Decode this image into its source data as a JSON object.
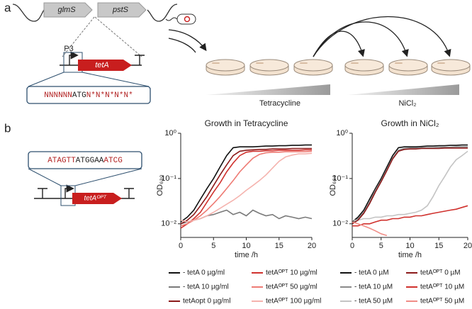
{
  "labels": {
    "panel_a": "a",
    "panel_b": "b"
  },
  "diagram_a": {
    "gene1": "glmS",
    "gene2": "pstS",
    "promoter": "P3",
    "gene": "tetA",
    "sequence": [
      "NNNNNN",
      "ATG",
      "N*N*N*N*N*"
    ],
    "gradient1": "Tetracycline",
    "gradient2": "NiCl₂"
  },
  "diagram_b": {
    "sequence": [
      "ATAGTT",
      "ATGGAA",
      "ATCG"
    ],
    "gene": "tetAᴼᴾᵀ"
  },
  "chart_data": [
    {
      "type": "line",
      "title": "Growth in Tetracycline",
      "x_label": "time /h",
      "y_label": "OD₆₃₀",
      "log_y": true,
      "xlim": [
        0,
        20
      ],
      "ylim": [
        0.005,
        1
      ],
      "xticks": [
        0,
        5,
        10,
        15,
        20
      ],
      "yticks": [
        {
          "value": 0.01,
          "label": "10⁻²"
        },
        {
          "value": 0.1,
          "label": "10⁻¹"
        },
        {
          "value": 1,
          "label": "10⁰"
        }
      ],
      "x": [
        0,
        1,
        2,
        3,
        4,
        5,
        6,
        7,
        8,
        9,
        10,
        11,
        12,
        13,
        14,
        15,
        16,
        17,
        18,
        19,
        20
      ],
      "series": [
        {
          "name": "- tetA 0 µg/ml",
          "color": "#111111",
          "values": [
            0.011,
            0.014,
            0.02,
            0.035,
            0.06,
            0.1,
            0.18,
            0.32,
            0.48,
            0.5,
            0.5,
            0.5,
            0.51,
            0.52,
            0.52,
            0.53,
            0.53,
            0.54,
            0.54,
            0.55,
            0.55
          ]
        },
        {
          "name": "- tetA 10 µg/ml",
          "color": "#7a7a7a",
          "values": [
            0.01,
            0.011,
            0.012,
            0.013,
            0.015,
            0.016,
            0.018,
            0.02,
            0.016,
            0.018,
            0.015,
            0.02,
            0.017,
            0.015,
            0.016,
            0.013,
            0.015,
            0.014,
            0.013,
            0.014,
            0.013
          ]
        },
        {
          "name": "tetAopt 0 µg/ml",
          "color": "#8b1a1a",
          "values": [
            0.01,
            0.012,
            0.016,
            0.025,
            0.04,
            0.07,
            0.12,
            0.2,
            0.32,
            0.4,
            0.42,
            0.43,
            0.44,
            0.44,
            0.45,
            0.45,
            0.45,
            0.46,
            0.46,
            0.46,
            0.46
          ]
        },
        {
          "name": "tetAᴼᴾᵀ 10 µg/ml",
          "color": "#d0312d",
          "values": [
            0.008,
            0.01,
            0.013,
            0.018,
            0.03,
            0.05,
            0.08,
            0.14,
            0.22,
            0.32,
            0.38,
            0.4,
            0.4,
            0.41,
            0.41,
            0.42,
            0.42,
            0.42,
            0.42,
            0.43,
            0.43
          ]
        },
        {
          "name": "tetAᴼᴾᵀ 50 µg/ml",
          "color": "#ee7b74",
          "values": [
            0.009,
            0.01,
            0.012,
            0.015,
            0.02,
            0.028,
            0.04,
            0.06,
            0.09,
            0.14,
            0.2,
            0.28,
            0.34,
            0.37,
            0.38,
            0.38,
            0.39,
            0.39,
            0.39,
            0.39,
            0.4
          ]
        },
        {
          "name": "tetAᴼᴾᵀ 100 µg/ml",
          "color": "#f5b3ae",
          "values": [
            0.012,
            0.011,
            0.012,
            0.013,
            0.015,
            0.018,
            0.022,
            0.027,
            0.033,
            0.042,
            0.055,
            0.07,
            0.09,
            0.12,
            0.17,
            0.24,
            0.3,
            0.33,
            0.35,
            0.35,
            0.36
          ]
        }
      ]
    },
    {
      "type": "line",
      "title": "Growth in NiCl₂",
      "x_label": "time /h",
      "y_label": "OD₆₃₀",
      "log_y": true,
      "xlim": [
        0,
        20
      ],
      "ylim": [
        0.005,
        1
      ],
      "xticks": [
        0,
        5,
        10,
        15,
        20
      ],
      "yticks": [
        {
          "value": 0.01,
          "label": "10⁻²"
        },
        {
          "value": 0.1,
          "label": "10⁻¹"
        },
        {
          "value": 1,
          "label": "10⁰"
        }
      ],
      "x": [
        0,
        1,
        2,
        3,
        4,
        5,
        6,
        7,
        8,
        9,
        10,
        11,
        12,
        13,
        14,
        15,
        16,
        17,
        18,
        19,
        20
      ],
      "series": [
        {
          "name": "- tetA 0 µM",
          "color": "#111111",
          "values": [
            0.011,
            0.014,
            0.02,
            0.035,
            0.06,
            0.1,
            0.18,
            0.32,
            0.48,
            0.5,
            0.5,
            0.5,
            0.51,
            0.52,
            0.52,
            0.53,
            0.53,
            0.54,
            0.54,
            0.55,
            0.55
          ]
        },
        {
          "name": "- tetA 10 µM",
          "color": "#8a8a8a",
          "values": [
            0.01,
            0.013,
            0.018,
            0.03,
            0.055,
            0.09,
            0.16,
            0.28,
            0.42,
            0.46,
            0.47,
            0.47,
            0.48,
            0.48,
            0.48,
            0.49,
            0.49,
            0.49,
            0.5,
            0.5,
            0.5
          ]
        },
        {
          "name": "- tetA 50 µM",
          "color": "#c4c4c4",
          "values": [
            0.012,
            0.012,
            0.013,
            0.013,
            0.014,
            0.014,
            0.015,
            0.015,
            0.016,
            0.016,
            0.017,
            0.018,
            0.02,
            0.025,
            0.04,
            0.07,
            0.11,
            0.18,
            0.26,
            0.32,
            0.4
          ]
        },
        {
          "name": "tetAᴼᴾᵀ 0 µM",
          "color": "#8b1a1a",
          "values": [
            0.01,
            0.012,
            0.017,
            0.028,
            0.05,
            0.085,
            0.15,
            0.27,
            0.4,
            0.44,
            0.45,
            0.45,
            0.46,
            0.46,
            0.46,
            0.46,
            0.47,
            0.47,
            0.47,
            0.47,
            0.47
          ]
        },
        {
          "name": "tetAᴼᴾᵀ 10 µM",
          "color": "#d0312d",
          "values": [
            0.009,
            0.009,
            0.01,
            0.01,
            0.011,
            0.012,
            0.012,
            0.013,
            0.013,
            0.014,
            0.014,
            0.015,
            0.015,
            0.016,
            0.017,
            0.018,
            0.019,
            0.02,
            0.021,
            0.023,
            0.025
          ]
        },
        {
          "name": "tetAᴼᴾᵀ 50 µM",
          "color": "#f08c86",
          "values": [
            0.011,
            0.01,
            0.009,
            0.008,
            0.007,
            0.006,
            0.0055,
            null,
            null,
            null,
            null,
            null,
            null,
            null,
            null,
            null,
            null,
            null,
            null,
            null,
            null
          ]
        }
      ]
    }
  ]
}
